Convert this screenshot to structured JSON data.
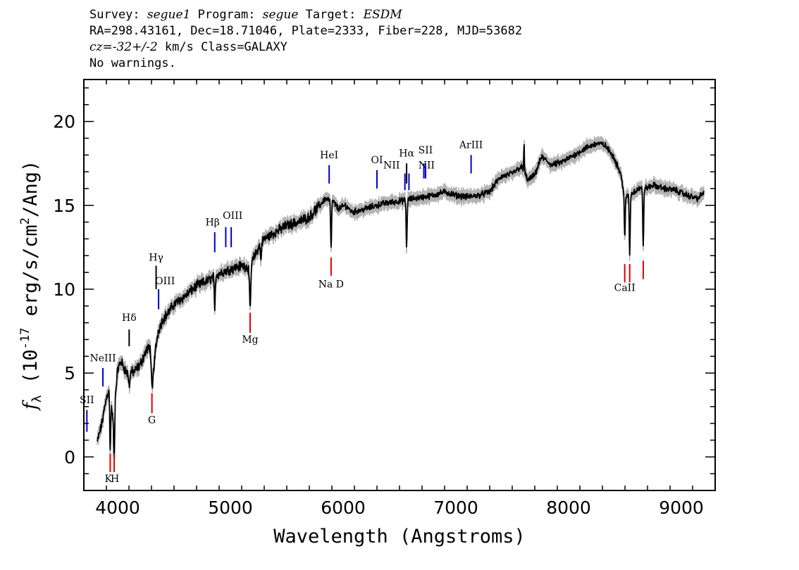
{
  "header": {
    "line1_a": "Survey: ",
    "survey": "segue1",
    "line1_b": " Program: ",
    "program": "segue",
    "line1_c": " Target: ",
    "target": "ESDM",
    "line2": "RA=298.43161, Dec=18.71046, Plate=2333, Fiber=228, MJD=53682",
    "line3_a": "cz=",
    "cz_value": "-32+/-2",
    "line3_b": " km/s Class=GALAXY",
    "line4": "No warnings."
  },
  "chart_data": {
    "type": "line",
    "xlabel": "Wavelength (Angstroms)",
    "ylabel_prefix": "f",
    "ylabel_sub": "λ",
    "ylabel_main": " (10",
    "ylabel_exp": "-17",
    "ylabel_mid": " erg/s/cm",
    "ylabel_exp2": "2",
    "ylabel_end": "/Ang)",
    "xlim": [
      3700,
      9300
    ],
    "ylim": [
      -2,
      22.5
    ],
    "xticks": [
      4000,
      5000,
      6000,
      7000,
      8000,
      9000
    ],
    "yticks": [
      0,
      5,
      10,
      15,
      20
    ],
    "xtick_labels": [
      "4000",
      "5000",
      "6000",
      "7000",
      "8000",
      "9000"
    ],
    "ytick_labels": [
      "0",
      "5",
      "10",
      "15",
      "20"
    ],
    "grid": false,
    "colors": {
      "spectrum": "#000000",
      "error": "#b3b3b3",
      "emission": "#0000cc",
      "absorption": "#dd0000"
    },
    "continuum": [
      [
        3820,
        0.9
      ],
      [
        3860,
        2.0
      ],
      [
        3900,
        3.5
      ],
      [
        3920,
        4.0
      ],
      [
        3940,
        3.2
      ],
      [
        3960,
        2.2
      ],
      [
        4000,
        5.2
      ],
      [
        4030,
        5.7
      ],
      [
        4080,
        5.0
      ],
      [
        4150,
        5.1
      ],
      [
        4200,
        5.5
      ],
      [
        4250,
        6.3
      ],
      [
        4290,
        6.6
      ],
      [
        4320,
        5.4
      ],
      [
        4340,
        6.6
      ],
      [
        4360,
        7.5
      ],
      [
        4400,
        8.2
      ],
      [
        4450,
        8.6
      ],
      [
        4500,
        9.1
      ],
      [
        4600,
        9.6
      ],
      [
        4700,
        10.2
      ],
      [
        4800,
        10.5
      ],
      [
        4860,
        10.8
      ],
      [
        4920,
        11.0
      ],
      [
        5000,
        11.2
      ],
      [
        5100,
        11.4
      ],
      [
        5170,
        11.3
      ],
      [
        5250,
        12.5
      ],
      [
        5300,
        13.0
      ],
      [
        5400,
        13.4
      ],
      [
        5500,
        13.8
      ],
      [
        5600,
        14.0
      ],
      [
        5700,
        14.3
      ],
      [
        5780,
        14.9
      ],
      [
        5840,
        15.4
      ],
      [
        5900,
        15.3
      ],
      [
        5960,
        14.8
      ],
      [
        6020,
        15.0
      ],
      [
        6080,
        14.6
      ],
      [
        6150,
        14.7
      ],
      [
        6250,
        14.9
      ],
      [
        6350,
        15.1
      ],
      [
        6450,
        15.2
      ],
      [
        6550,
        15.3
      ],
      [
        6620,
        15.4
      ],
      [
        6720,
        15.5
      ],
      [
        6800,
        15.6
      ],
      [
        6900,
        15.8
      ],
      [
        7000,
        15.6
      ],
      [
        7100,
        15.5
      ],
      [
        7200,
        15.6
      ],
      [
        7300,
        15.8
      ],
      [
        7350,
        16.3
      ],
      [
        7400,
        16.7
      ],
      [
        7500,
        16.9
      ],
      [
        7580,
        17.3
      ],
      [
        7640,
        16.5
      ],
      [
        7700,
        16.8
      ],
      [
        7760,
        17.9
      ],
      [
        7850,
        17.4
      ],
      [
        7950,
        17.6
      ],
      [
        8050,
        18.0
      ],
      [
        8150,
        18.4
      ],
      [
        8250,
        18.7
      ],
      [
        8320,
        18.6
      ],
      [
        8400,
        17.9
      ],
      [
        8460,
        16.9
      ],
      [
        8500,
        15.5
      ],
      [
        8560,
        15.7
      ],
      [
        8620,
        16.0
      ],
      [
        8680,
        16.0
      ],
      [
        8750,
        16.2
      ],
      [
        8850,
        16.0
      ],
      [
        8950,
        15.9
      ],
      [
        9050,
        15.6
      ],
      [
        9150,
        15.4
      ],
      [
        9200,
        15.8
      ]
    ],
    "dips": [
      [
        3934,
        3.0,
        6
      ],
      [
        3969,
        3.2,
        6
      ],
      [
        4102,
        0.8,
        8
      ],
      [
        4305,
        2.0,
        10
      ],
      [
        4861,
        2.2,
        6
      ],
      [
        5175,
        2.6,
        8
      ],
      [
        5270,
        1.0,
        6
      ],
      [
        5893,
        2.9,
        6
      ],
      [
        6563,
        2.8,
        6
      ],
      [
        7605,
        -1.8,
        4
      ],
      [
        8498,
        2.5,
        6
      ],
      [
        8542,
        3.5,
        6
      ],
      [
        8662,
        3.3,
        6
      ]
    ],
    "lines": [
      {
        "label": "SII",
        "color": "blue",
        "x": 3727,
        "y1": 1.5,
        "y2": 2.8,
        "lx": 3727,
        "ly": 3.2,
        "anchor": "middle"
      },
      {
        "label": "NeIII",
        "color": "blue",
        "x": 3869,
        "y1": 4.2,
        "y2": 5.3,
        "lx": 3869,
        "ly": 5.7,
        "anchor": "middle"
      },
      {
        "label": "Hδ",
        "color": "black",
        "x": 4102,
        "y1": 6.6,
        "y2": 7.6,
        "lx": 4102,
        "ly": 8.1,
        "anchor": "middle"
      },
      {
        "label": "Hγ",
        "color": "black",
        "x": 4341,
        "y1": 10.0,
        "y2": 11.4,
        "lx": 4341,
        "ly": 11.7,
        "anchor": "middle"
      },
      {
        "label": "OIII",
        "color": "blue",
        "x": 4363,
        "y1": 8.8,
        "y2": 10.0,
        "lx": 4420,
        "ly": 10.3,
        "anchor": "middle"
      },
      {
        "label": "Hβ",
        "color": "blue",
        "x": 4861,
        "y1": 12.2,
        "y2": 13.4,
        "lx": 4842,
        "ly": 13.8,
        "anchor": "middle"
      },
      {
        "label": "OIII",
        "color": "blue",
        "x": 4959,
        "y1": 12.5,
        "y2": 13.7,
        "lx": 5020,
        "ly": 14.2,
        "anchor": "middle"
      },
      {
        "label": "",
        "color": "blue",
        "x": 5007,
        "y1": 12.5,
        "y2": 13.7,
        "lx": 5007,
        "ly": 13.8,
        "anchor": "middle"
      },
      {
        "label": "HeI",
        "color": "blue",
        "x": 5876,
        "y1": 16.3,
        "y2": 17.4,
        "lx": 5876,
        "ly": 17.8,
        "anchor": "middle"
      },
      {
        "label": "OI",
        "color": "blue",
        "x": 6300,
        "y1": 16.0,
        "y2": 17.1,
        "lx": 6300,
        "ly": 17.5,
        "anchor": "middle"
      },
      {
        "label": "NII",
        "color": "blue",
        "x": 6548,
        "y1": 15.9,
        "y2": 16.9,
        "lx": 6430,
        "ly": 17.2,
        "anchor": "middle"
      },
      {
        "label": "Hα",
        "color": "black",
        "x": 6563,
        "y1": 16.3,
        "y2": 17.5,
        "lx": 6563,
        "ly": 17.9,
        "anchor": "middle"
      },
      {
        "label": "",
        "color": "blue",
        "x": 6584,
        "y1": 15.9,
        "y2": 16.9,
        "lx": 6584,
        "ly": 17.0,
        "anchor": "middle"
      },
      {
        "label": "NII",
        "color": "blue",
        "x": 6716,
        "y1": 16.6,
        "y2": 17.5,
        "lx": 6740,
        "ly": 17.2,
        "anchor": "middle"
      },
      {
        "label": "SII",
        "color": "blue",
        "x": 6731,
        "y1": 16.6,
        "y2": 17.5,
        "lx": 6731,
        "ly": 18.1,
        "anchor": "middle"
      },
      {
        "label": "ArIII",
        "color": "blue",
        "x": 7135,
        "y1": 16.9,
        "y2": 18.0,
        "lx": 7135,
        "ly": 18.4,
        "anchor": "middle"
      },
      {
        "label": "K",
        "color": "red",
        "x": 3934,
        "y1": -0.9,
        "y2": 0.2,
        "lx": 3918,
        "ly": -1.5,
        "anchor": "middle"
      },
      {
        "label": "H",
        "color": "red",
        "x": 3969,
        "y1": -0.9,
        "y2": 0.2,
        "lx": 3976,
        "ly": -1.5,
        "anchor": "middle"
      },
      {
        "label": "G",
        "color": "red",
        "x": 4304,
        "y1": 2.6,
        "y2": 3.8,
        "lx": 4304,
        "ly": 2.0,
        "anchor": "middle"
      },
      {
        "label": "Mg",
        "color": "red",
        "x": 5175,
        "y1": 7.4,
        "y2": 8.6,
        "lx": 5175,
        "ly": 6.8,
        "anchor": "middle"
      },
      {
        "label": "Na  D",
        "color": "red",
        "x": 5893,
        "y1": 10.8,
        "y2": 11.9,
        "lx": 5893,
        "ly": 10.1,
        "anchor": "middle"
      },
      {
        "label": "CaII",
        "color": "red",
        "x": 8498,
        "y1": 10.4,
        "y2": 11.5,
        "lx": 8498,
        "ly": 9.9,
        "anchor": "middle"
      },
      {
        "label": "",
        "color": "red",
        "x": 8542,
        "y1": 10.4,
        "y2": 11.5,
        "lx": 8542,
        "ly": 9.9,
        "anchor": "middle"
      },
      {
        "label": "",
        "color": "red",
        "x": 8662,
        "y1": 10.6,
        "y2": 11.7,
        "lx": 8662,
        "ly": 9.9,
        "anchor": "middle"
      }
    ]
  }
}
